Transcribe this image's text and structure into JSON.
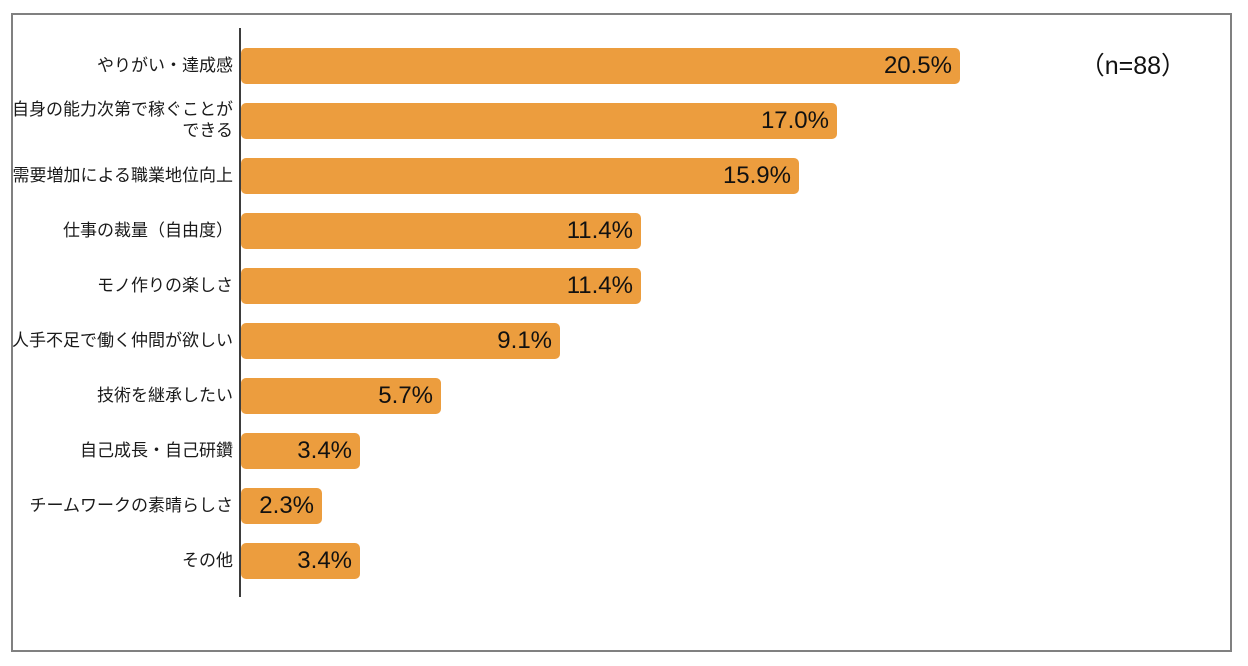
{
  "chart_data": {
    "type": "bar",
    "orientation": "horizontal",
    "title": "",
    "xlabel": "",
    "ylabel": "",
    "grid": false,
    "legend": false,
    "xlim": [
      0,
      28.2
    ],
    "unit": "%",
    "annotation": "（n=88）",
    "bar_color": "#EC9D3E",
    "axis_color": "#3D3D3D",
    "border_color": "#808080",
    "text_color": "#1A1A1A",
    "categories": [
      "やりがい・達成感",
      "自身の能力次第で稼ぐことが\nできる",
      "需要増加による職業地位向上",
      "仕事の裁量（自由度）",
      "モノ作りの楽しさ",
      "人手不足で働く仲間が欲しい",
      "技術を継承したい",
      "自己成長・自己研鑽",
      "チームワークの素晴らしさ",
      "その他"
    ],
    "values": [
      20.5,
      17.0,
      15.9,
      11.4,
      11.4,
      9.1,
      5.7,
      3.4,
      2.3,
      3.4
    ],
    "value_labels": [
      "20.5%",
      "17.0%",
      "15.9%",
      "11.4%",
      "11.4%",
      "9.1%",
      "5.7%",
      "3.4%",
      "2.3%",
      "3.4%"
    ]
  }
}
